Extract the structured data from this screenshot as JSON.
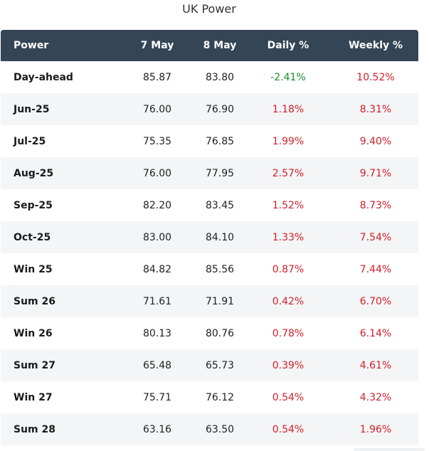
{
  "title": "UK Power",
  "columns": [
    "Power",
    "7 May",
    "8 May",
    "Daily %",
    "Weekly %"
  ],
  "rows": [
    {
      "name": "Day-ahead",
      "may7": "85.87",
      "may8": "83.80",
      "daily": "-2.41%",
      "weekly": "10.52%"
    },
    {
      "name": "Jun-25",
      "may7": "76.00",
      "may8": "76.90",
      "daily": "1.18%",
      "weekly": "8.31%"
    },
    {
      "name": "Jul-25",
      "may7": "75.35",
      "may8": "76.85",
      "daily": "1.99%",
      "weekly": "9.40%"
    },
    {
      "name": "Aug-25",
      "may7": "76.00",
      "may8": "77.95",
      "daily": "2.57%",
      "weekly": "9.71%"
    },
    {
      "name": "Sep-25",
      "may7": "82.20",
      "may8": "83.45",
      "daily": "1.52%",
      "weekly": "8.73%"
    },
    {
      "name": "Oct-25",
      "may7": "83.00",
      "may8": "84.10",
      "daily": "1.33%",
      "weekly": "7.54%"
    },
    {
      "name": "Win 25",
      "may7": "84.82",
      "may8": "85.56",
      "daily": "0.87%",
      "weekly": "7.44%"
    },
    {
      "name": "Sum 26",
      "may7": "71.61",
      "may8": "71.91",
      "daily": "0.42%",
      "weekly": "6.70%"
    },
    {
      "name": "Win 26",
      "may7": "80.13",
      "may8": "80.76",
      "daily": "0.78%",
      "weekly": "6.14%"
    },
    {
      "name": "Sum 27",
      "may7": "65.48",
      "may8": "65.73",
      "daily": "0.39%",
      "weekly": "4.61%"
    },
    {
      "name": "Win 27",
      "may7": "75.71",
      "may8": "76.12",
      "daily": "0.54%",
      "weekly": "4.32%"
    },
    {
      "name": "Sum 28",
      "may7": "63.16",
      "may8": "63.50",
      "daily": "0.54%",
      "weekly": "1.96%"
    }
  ],
  "colors": {
    "header_bg": "#344555",
    "positive": "#d0202a",
    "negative": "#1a8a2a"
  }
}
